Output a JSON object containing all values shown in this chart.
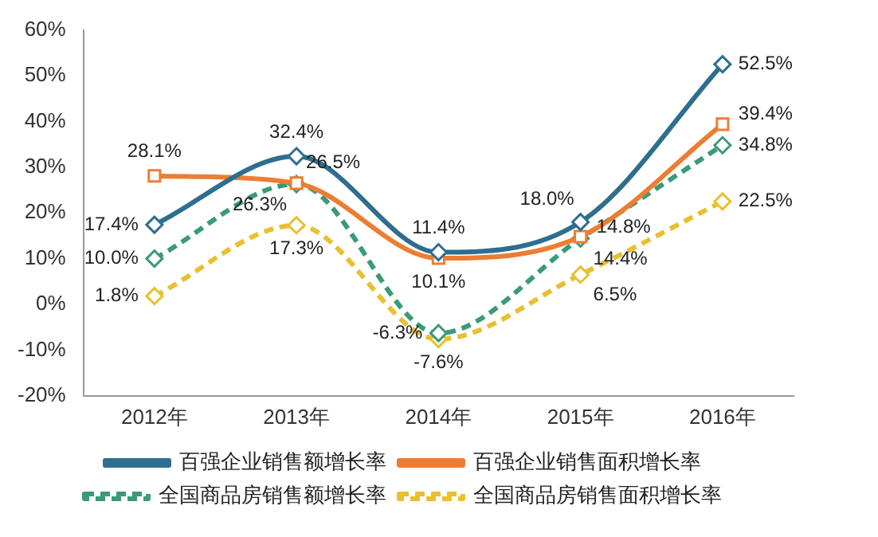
{
  "chart_data": {
    "type": "line",
    "categories": [
      "2012年",
      "2013年",
      "2014年",
      "2015年",
      "2016年"
    ],
    "ylim": [
      -20,
      60
    ],
    "yticks": [
      {
        "value": -20,
        "label": "-20%"
      },
      {
        "value": -10,
        "label": "-10%"
      },
      {
        "value": 0,
        "label": "0%"
      },
      {
        "value": 10,
        "label": "10%"
      },
      {
        "value": 20,
        "label": "20%"
      },
      {
        "value": 30,
        "label": "30%"
      },
      {
        "value": 40,
        "label": "40%"
      },
      {
        "value": 50,
        "label": "50%"
      },
      {
        "value": 60,
        "label": "60%"
      }
    ],
    "grid": false,
    "legend": "bottom",
    "series": [
      {
        "name": "百强企业销售额增长率",
        "color": "#2e6e8e",
        "values": [
          17.4,
          32.4,
          11.4,
          18.0,
          52.5
        ],
        "value_labels": [
          "17.4%",
          "32.4%",
          "11.4%",
          "18.0%",
          "52.5%"
        ],
        "marker": "diamond",
        "line_style": "solid"
      },
      {
        "name": "百强企业销售面积增长率",
        "color": "#ed7d31",
        "values": [
          28.1,
          26.5,
          10.1,
          14.8,
          39.4
        ],
        "value_labels": [
          "28.1%",
          "26.5%",
          "10.1%",
          "14.8%",
          "39.4%"
        ],
        "marker": "square",
        "line_style": "solid"
      },
      {
        "name": "全国商品房销售额增长率",
        "color": "#3a9a7a",
        "values": [
          10.0,
          26.3,
          -6.3,
          14.4,
          34.8
        ],
        "value_labels": [
          "10.0%",
          "26.3%",
          "-6.3%",
          "14.4%",
          "34.8%"
        ],
        "marker": "diamond",
        "line_style": "dashed"
      },
      {
        "name": "全国商品房销售面积增长率",
        "color": "#e8c030",
        "values": [
          1.8,
          17.3,
          -7.6,
          6.5,
          22.5
        ],
        "value_labels": [
          "1.8%",
          "17.3%",
          "-7.6%",
          "6.5%",
          "22.5%"
        ],
        "marker": "diamond",
        "line_style": "dashed"
      }
    ]
  }
}
